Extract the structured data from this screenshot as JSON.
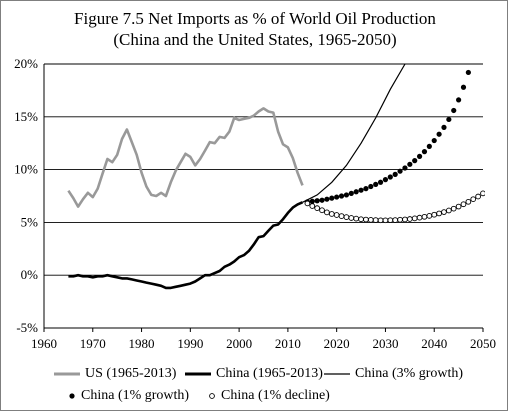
{
  "chart_data": {
    "type": "line",
    "title": "Figure 7.5 Net Imports as % of World Oil Production",
    "subtitle": "(China and the United States, 1965-2050)",
    "xlim": [
      1960,
      2050
    ],
    "ylim": [
      -5,
      20
    ],
    "x_ticks": [
      "1960",
      "1970",
      "1980",
      "1990",
      "2000",
      "2010",
      "2020",
      "2030",
      "2040",
      "2050"
    ],
    "y_ticks": [
      "-5%",
      "0%",
      "5%",
      "10%",
      "15%",
      "20%"
    ],
    "grid": "horizontal",
    "legend_placement": "bottom",
    "series": [
      {
        "name": "US (1965-2013)",
        "style": "line",
        "color": "#999999",
        "x": [
          1965,
          1966,
          1967,
          1968,
          1969,
          1970,
          1971,
          1972,
          1973,
          1974,
          1975,
          1976,
          1977,
          1978,
          1979,
          1980,
          1981,
          1982,
          1983,
          1984,
          1985,
          1986,
          1987,
          1988,
          1989,
          1990,
          1991,
          1992,
          1993,
          1994,
          1995,
          1996,
          1997,
          1998,
          1999,
          2000,
          2001,
          2002,
          2003,
          2004,
          2005,
          2006,
          2007,
          2008,
          2009,
          2010,
          2011,
          2012,
          2013
        ],
        "values": [
          8.0,
          7.3,
          6.5,
          7.2,
          7.8,
          7.4,
          8.2,
          9.6,
          11.0,
          10.7,
          11.4,
          12.9,
          13.8,
          12.6,
          11.4,
          9.7,
          8.4,
          7.6,
          7.5,
          7.8,
          7.5,
          8.8,
          9.9,
          10.7,
          11.5,
          11.2,
          10.4,
          11.0,
          11.8,
          12.6,
          12.5,
          13.1,
          13.0,
          13.6,
          14.9,
          14.7,
          14.8,
          14.9,
          15.1,
          15.5,
          15.8,
          15.5,
          15.4,
          13.6,
          12.4,
          12.1,
          11.1,
          9.7,
          8.5
        ]
      },
      {
        "name": "China (1965-2013)",
        "style": "thick-line",
        "color": "#000000",
        "x": [
          1965,
          1966,
          1967,
          1968,
          1969,
          1970,
          1971,
          1972,
          1973,
          1974,
          1975,
          1976,
          1977,
          1978,
          1979,
          1980,
          1981,
          1982,
          1983,
          1984,
          1985,
          1986,
          1987,
          1988,
          1989,
          1990,
          1991,
          1992,
          1993,
          1994,
          1995,
          1996,
          1997,
          1998,
          1999,
          2000,
          2001,
          2002,
          2003,
          2004,
          2005,
          2006,
          2007,
          2008,
          2009,
          2010,
          2011,
          2012,
          2013
        ],
        "values": [
          -0.1,
          -0.1,
          0.0,
          -0.1,
          -0.1,
          -0.2,
          -0.1,
          -0.1,
          0.0,
          -0.1,
          -0.2,
          -0.3,
          -0.3,
          -0.4,
          -0.5,
          -0.6,
          -0.7,
          -0.8,
          -0.9,
          -1.0,
          -1.2,
          -1.2,
          -1.1,
          -1.0,
          -0.9,
          -0.8,
          -0.6,
          -0.3,
          0.0,
          0.0,
          0.2,
          0.4,
          0.8,
          1.0,
          1.3,
          1.7,
          1.9,
          2.3,
          2.9,
          3.6,
          3.7,
          4.2,
          4.7,
          4.8,
          5.3,
          5.9,
          6.4,
          6.7,
          6.9
        ]
      },
      {
        "name": "China (3% growth)",
        "style": "thin-line",
        "color": "#000000",
        "x": [
          2013,
          2016,
          2019,
          2022,
          2025,
          2028,
          2031,
          2034
        ],
        "values": [
          6.9,
          7.6,
          8.8,
          10.4,
          12.5,
          14.9,
          17.6,
          20.0
        ]
      },
      {
        "name": "China (1% growth)",
        "style": "filled-dots",
        "color": "#000000",
        "x": [
          2014,
          2015,
          2016,
          2017,
          2018,
          2019,
          2020,
          2021,
          2022,
          2023,
          2024,
          2025,
          2026,
          2027,
          2028,
          2029,
          2030,
          2031,
          2032,
          2033,
          2034,
          2035,
          2036,
          2037,
          2038,
          2039,
          2040,
          2041,
          2042,
          2043,
          2044,
          2045,
          2046,
          2047
        ],
        "values": [
          6.95,
          7.0,
          7.05,
          7.1,
          7.2,
          7.3,
          7.4,
          7.5,
          7.6,
          7.75,
          7.9,
          8.05,
          8.2,
          8.4,
          8.6,
          8.8,
          9.05,
          9.3,
          9.55,
          9.85,
          10.15,
          10.5,
          10.85,
          11.25,
          11.7,
          12.2,
          12.75,
          13.35,
          14.0,
          14.75,
          15.6,
          16.6,
          17.8,
          19.2
        ]
      },
      {
        "name": "China (1% decline)",
        "style": "open-dots",
        "color": "#000000",
        "x": [
          2014,
          2015,
          2016,
          2017,
          2018,
          2019,
          2020,
          2021,
          2022,
          2023,
          2024,
          2025,
          2026,
          2027,
          2028,
          2029,
          2030,
          2031,
          2032,
          2033,
          2034,
          2035,
          2036,
          2037,
          2038,
          2039,
          2040,
          2041,
          2042,
          2043,
          2044,
          2045,
          2046,
          2047,
          2048,
          2049,
          2050
        ],
        "values": [
          6.8,
          6.55,
          6.35,
          6.15,
          5.95,
          5.8,
          5.7,
          5.6,
          5.5,
          5.42,
          5.36,
          5.3,
          5.27,
          5.24,
          5.22,
          5.2,
          5.2,
          5.21,
          5.22,
          5.25,
          5.28,
          5.32,
          5.38,
          5.45,
          5.53,
          5.62,
          5.73,
          5.85,
          5.98,
          6.13,
          6.3,
          6.5,
          6.72,
          6.95,
          7.2,
          7.45,
          7.75
        ]
      }
    ]
  }
}
